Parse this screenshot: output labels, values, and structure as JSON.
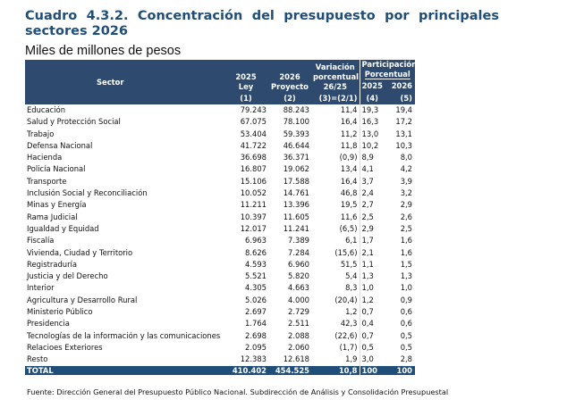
{
  "title": "Cuadro 4.3.2. Concentración del presupuesto por principales sectores 2026",
  "subtitle": "Miles de millones de pesos",
  "headers": {
    "sector": "Sector",
    "c1": [
      "2025",
      "Ley",
      "(1)"
    ],
    "c2": [
      "2026",
      "Proyecto",
      "(2)"
    ],
    "c3": [
      "Variación",
      "porcentual",
      "26/25",
      "(3)=(2/1)"
    ],
    "part": [
      "Participación",
      "Porcentual"
    ],
    "c4": [
      "2025",
      "(4)"
    ],
    "c5": [
      "2026",
      "(5)"
    ]
  },
  "rows": [
    [
      "Educación",
      "79.243",
      "88.243",
      "11,4",
      "19,3",
      "19,4"
    ],
    [
      "Salud y Protección Social",
      "67.075",
      "78.100",
      "16,4",
      "16,3",
      "17,2"
    ],
    [
      "Trabajo",
      "53.404",
      "59.393",
      "11,2",
      "13,0",
      "13,1"
    ],
    [
      "Defensa Nacional",
      "41.722",
      "46.644",
      "11,8",
      "10,2",
      "10,3"
    ],
    [
      "Hacienda",
      "36.698",
      "36.371",
      "(0,9)",
      "8,9",
      "8,0"
    ],
    [
      "Policía Nacional",
      "16.807",
      "19.062",
      "13,4",
      "4,1",
      "4,2"
    ],
    [
      "Transporte",
      "15.106",
      "17.588",
      "16,4",
      "3,7",
      "3,9"
    ],
    [
      "Inclusión Social y Reconciliación",
      "10.052",
      "14.761",
      "46,8",
      "2,4",
      "3,2"
    ],
    [
      "Minas y Energía",
      "11.211",
      "13.396",
      "19,5",
      "2,7",
      "2,9"
    ],
    [
      "Rama Judicial",
      "10.397",
      "11.605",
      "11,6",
      "2,5",
      "2,6"
    ],
    [
      "Igualdad y Equidad",
      "12.017",
      "11.241",
      "(6,5)",
      "2,9",
      "2,5"
    ],
    [
      "Fiscalía",
      "6.963",
      "7.389",
      "6,1",
      "1,7",
      "1,6"
    ],
    [
      "Vivienda, Ciudad y Territorio",
      "8.626",
      "7.284",
      "(15,6)",
      "2,1",
      "1,6"
    ],
    [
      "Registraduría",
      "4.593",
      "6.960",
      "51,5",
      "1,1",
      "1,5"
    ],
    [
      "Justicia y del Derecho",
      "5.521",
      "5.820",
      "5,4",
      "1,3",
      "1,3"
    ],
    [
      "Interior",
      "4.305",
      "4.663",
      "8,3",
      "1,0",
      "1,0"
    ],
    [
      "Agricultura y Desarrollo Rural",
      "5.026",
      "4.000",
      "(20,4)",
      "1,2",
      "0,9"
    ],
    [
      "Ministerio Público",
      "2.697",
      "2.729",
      "1,2",
      "0,7",
      "0,6"
    ],
    [
      "Presidencia",
      "1.764",
      "2.511",
      "42,3",
      "0,4",
      "0,6"
    ],
    [
      "Tecnologías de la información y las comunicaciones",
      "2.698",
      "2.088",
      "(22,6)",
      "0,7",
      "0,5"
    ],
    [
      "Relacioes Exteriores",
      "2.095",
      "2.060",
      "(1,7)",
      "0,5",
      "0,5"
    ],
    [
      "Resto",
      "12.383",
      "12.618",
      "1,9",
      "3,0",
      "2,8"
    ]
  ],
  "total": [
    "TOTAL",
    "410.402",
    "454.525",
    "10,8",
    "100",
    "100"
  ],
  "source": "Fuente: Dirección General del Presupuesto Público Nacional. Subdirección de Análisis y Consolidación Presupuestal",
  "colors": {
    "header": "#2e4a6e",
    "total": "#1f4e79",
    "title": "#1f4e79"
  }
}
